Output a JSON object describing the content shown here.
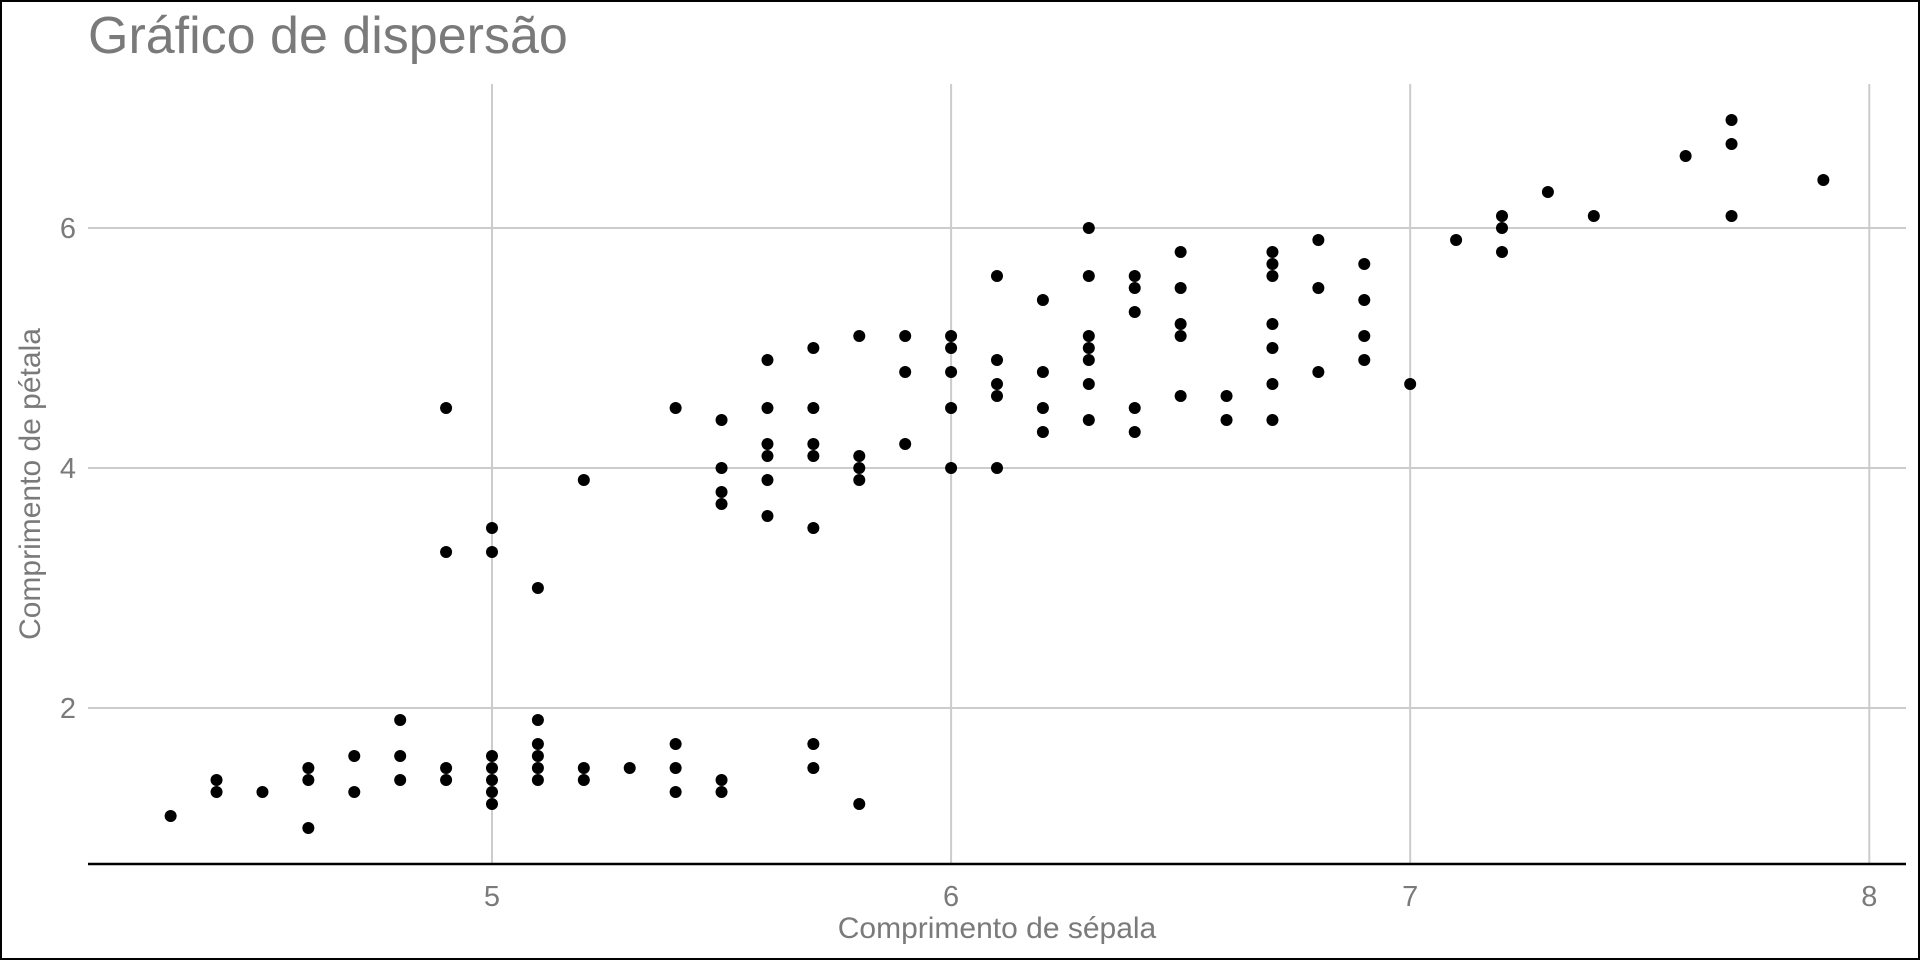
{
  "chart_data": {
    "type": "scatter",
    "title": "Gráfico de dispersão",
    "xlabel": "Comprimento de sépala",
    "ylabel": "Comprimento de pétala",
    "xlim": [
      4.12,
      8.08
    ],
    "ylim": [
      0.7,
      7.2
    ],
    "xticks": [
      5,
      6,
      7,
      8
    ],
    "yticks": [
      2,
      4,
      6
    ],
    "grid": true,
    "colors": {
      "point": "#000000",
      "grid": "#cccccc",
      "axis": "#000000",
      "text": "#7a7a7a"
    },
    "points": [
      [
        4.3,
        1.1
      ],
      [
        4.4,
        1.4
      ],
      [
        4.4,
        1.3
      ],
      [
        4.5,
        1.3
      ],
      [
        4.6,
        1.0
      ],
      [
        4.6,
        1.5
      ],
      [
        4.6,
        1.4
      ],
      [
        4.7,
        1.6
      ],
      [
        4.7,
        1.3
      ],
      [
        4.8,
        1.9
      ],
      [
        4.8,
        1.6
      ],
      [
        4.8,
        1.4
      ],
      [
        4.9,
        4.5
      ],
      [
        4.9,
        3.3
      ],
      [
        4.9,
        1.5
      ],
      [
        4.9,
        1.4
      ],
      [
        5.0,
        3.5
      ],
      [
        5.0,
        3.3
      ],
      [
        5.0,
        1.6
      ],
      [
        5.0,
        1.5
      ],
      [
        5.0,
        1.4
      ],
      [
        5.0,
        1.3
      ],
      [
        5.0,
        1.2
      ],
      [
        5.1,
        3.0
      ],
      [
        5.1,
        1.9
      ],
      [
        5.1,
        1.7
      ],
      [
        5.1,
        1.6
      ],
      [
        5.1,
        1.5
      ],
      [
        5.1,
        1.4
      ],
      [
        5.2,
        3.9
      ],
      [
        5.2,
        1.5
      ],
      [
        5.2,
        1.4
      ],
      [
        5.3,
        1.5
      ],
      [
        5.4,
        4.5
      ],
      [
        5.4,
        1.7
      ],
      [
        5.4,
        1.5
      ],
      [
        5.4,
        1.3
      ],
      [
        5.5,
        4.4
      ],
      [
        5.5,
        4.0
      ],
      [
        5.5,
        3.8
      ],
      [
        5.5,
        3.7
      ],
      [
        5.5,
        1.4
      ],
      [
        5.5,
        1.3
      ],
      [
        5.6,
        4.9
      ],
      [
        5.6,
        4.5
      ],
      [
        5.6,
        4.2
      ],
      [
        5.6,
        4.1
      ],
      [
        5.6,
        3.9
      ],
      [
        5.6,
        3.6
      ],
      [
        5.7,
        5.0
      ],
      [
        5.7,
        4.5
      ],
      [
        5.7,
        4.2
      ],
      [
        5.7,
        4.1
      ],
      [
        5.7,
        3.5
      ],
      [
        5.7,
        1.7
      ],
      [
        5.7,
        1.5
      ],
      [
        5.8,
        5.1
      ],
      [
        5.8,
        4.1
      ],
      [
        5.8,
        4.0
      ],
      [
        5.8,
        3.9
      ],
      [
        5.8,
        1.2
      ],
      [
        5.9,
        5.1
      ],
      [
        5.9,
        4.8
      ],
      [
        5.9,
        4.2
      ],
      [
        6.0,
        5.1
      ],
      [
        6.0,
        5.0
      ],
      [
        6.0,
        4.8
      ],
      [
        6.0,
        4.5
      ],
      [
        6.0,
        4.0
      ],
      [
        6.1,
        5.6
      ],
      [
        6.1,
        4.9
      ],
      [
        6.1,
        4.7
      ],
      [
        6.1,
        4.6
      ],
      [
        6.1,
        4.0
      ],
      [
        6.2,
        5.4
      ],
      [
        6.2,
        4.8
      ],
      [
        6.2,
        4.5
      ],
      [
        6.2,
        4.3
      ],
      [
        6.3,
        6.0
      ],
      [
        6.3,
        5.6
      ],
      [
        6.3,
        5.1
      ],
      [
        6.3,
        5.0
      ],
      [
        6.3,
        4.9
      ],
      [
        6.3,
        4.7
      ],
      [
        6.3,
        4.4
      ],
      [
        6.4,
        5.6
      ],
      [
        6.4,
        5.5
      ],
      [
        6.4,
        5.3
      ],
      [
        6.4,
        4.5
      ],
      [
        6.4,
        4.3
      ],
      [
        6.5,
        5.8
      ],
      [
        6.5,
        5.5
      ],
      [
        6.5,
        5.2
      ],
      [
        6.5,
        5.1
      ],
      [
        6.5,
        4.6
      ],
      [
        6.6,
        4.6
      ],
      [
        6.6,
        4.4
      ],
      [
        6.7,
        5.8
      ],
      [
        6.7,
        5.7
      ],
      [
        6.7,
        5.6
      ],
      [
        6.7,
        5.2
      ],
      [
        6.7,
        5.0
      ],
      [
        6.7,
        4.7
      ],
      [
        6.7,
        4.4
      ],
      [
        6.8,
        5.9
      ],
      [
        6.8,
        5.5
      ],
      [
        6.8,
        4.8
      ],
      [
        6.9,
        5.7
      ],
      [
        6.9,
        5.4
      ],
      [
        6.9,
        5.1
      ],
      [
        6.9,
        4.9
      ],
      [
        7.0,
        4.7
      ],
      [
        7.1,
        5.9
      ],
      [
        7.2,
        6.1
      ],
      [
        7.2,
        6.0
      ],
      [
        7.2,
        5.8
      ],
      [
        7.3,
        6.3
      ],
      [
        7.4,
        6.1
      ],
      [
        7.6,
        6.6
      ],
      [
        7.7,
        6.9
      ],
      [
        7.7,
        6.7
      ],
      [
        7.7,
        6.1
      ],
      [
        7.9,
        6.4
      ]
    ]
  }
}
